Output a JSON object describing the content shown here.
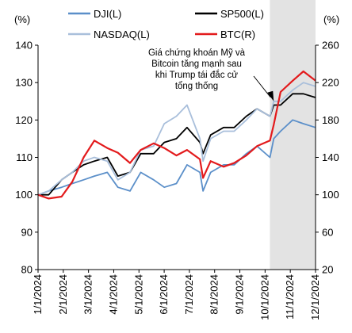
{
  "chart_data": {
    "type": "line",
    "title": "",
    "y_left": {
      "label": "(%)",
      "ylim": [
        80,
        140
      ],
      "ticks": [
        80,
        90,
        100,
        110,
        120,
        130,
        140
      ]
    },
    "y_right": {
      "label": "(%)",
      "ylim": [
        20,
        260
      ],
      "ticks": [
        20,
        60,
        100,
        140,
        180,
        220,
        260
      ]
    },
    "x_axis": {
      "range": [
        "2024-01-01",
        "2024-12-31"
      ],
      "tick_labels": [
        "1/1/2024",
        "2/1/2024",
        "3/1/2024",
        "4/1/2024",
        "5/1/2024",
        "6/1/2024",
        "7/1/2024",
        "8/1/2024",
        "9/1/2024",
        "10/1/2024",
        "11/1/2024",
        "12/1/2024"
      ]
    },
    "grid": false,
    "legend_position": "top",
    "highlight": {
      "from": "2024-11-01",
      "to": "2024-12-31",
      "color": "#d9d9d9"
    },
    "annotation": {
      "lines": [
        "Giá chứng khoán Mỹ và",
        "Bitcoin tăng mạnh sau",
        "khi Trump tái đắc cử",
        "tổng thống"
      ],
      "arrow_to": {
        "date": "2024-11-06",
        "value": 125
      }
    },
    "series": [
      {
        "name": "DJI(L)",
        "axis": "left",
        "color": "#5b8fc9",
        "points": [
          [
            "2024-01-01",
            100
          ],
          [
            "2024-01-15",
            101
          ],
          [
            "2024-02-01",
            102
          ],
          [
            "2024-02-15",
            103
          ],
          [
            "2024-03-01",
            104
          ],
          [
            "2024-03-15",
            105
          ],
          [
            "2024-04-01",
            106
          ],
          [
            "2024-04-15",
            102
          ],
          [
            "2024-05-01",
            101
          ],
          [
            "2024-05-15",
            106
          ],
          [
            "2024-06-01",
            104
          ],
          [
            "2024-06-15",
            102
          ],
          [
            "2024-07-01",
            103
          ],
          [
            "2024-07-15",
            108
          ],
          [
            "2024-08-01",
            106
          ],
          [
            "2024-08-05",
            101
          ],
          [
            "2024-08-15",
            106
          ],
          [
            "2024-09-01",
            108
          ],
          [
            "2024-09-15",
            108
          ],
          [
            "2024-10-01",
            111
          ],
          [
            "2024-10-15",
            113
          ],
          [
            "2024-11-01",
            110
          ],
          [
            "2024-11-06",
            115
          ],
          [
            "2024-11-15",
            117
          ],
          [
            "2024-12-01",
            120
          ],
          [
            "2024-12-15",
            119
          ],
          [
            "2024-12-31",
            118
          ]
        ]
      },
      {
        "name": "SP500(L)",
        "axis": "left",
        "color": "#000000",
        "points": [
          [
            "2024-01-01",
            100
          ],
          [
            "2024-01-15",
            100
          ],
          [
            "2024-02-01",
            104
          ],
          [
            "2024-02-15",
            106
          ],
          [
            "2024-03-01",
            108
          ],
          [
            "2024-03-15",
            109
          ],
          [
            "2024-04-01",
            110
          ],
          [
            "2024-04-15",
            105
          ],
          [
            "2024-05-01",
            106
          ],
          [
            "2024-05-15",
            111
          ],
          [
            "2024-06-01",
            111
          ],
          [
            "2024-06-15",
            114
          ],
          [
            "2024-07-01",
            115
          ],
          [
            "2024-07-15",
            118
          ],
          [
            "2024-08-01",
            114
          ],
          [
            "2024-08-05",
            111
          ],
          [
            "2024-08-15",
            116
          ],
          [
            "2024-09-01",
            118
          ],
          [
            "2024-09-15",
            118
          ],
          [
            "2024-10-01",
            121
          ],
          [
            "2024-10-15",
            123
          ],
          [
            "2024-11-01",
            121
          ],
          [
            "2024-11-06",
            124
          ],
          [
            "2024-11-15",
            124
          ],
          [
            "2024-12-01",
            127
          ],
          [
            "2024-12-15",
            127
          ],
          [
            "2024-12-31",
            126
          ]
        ]
      },
      {
        "name": "NASDAQ(L)",
        "axis": "left",
        "color": "#a9bfdb",
        "points": [
          [
            "2024-01-01",
            100
          ],
          [
            "2024-01-15",
            101
          ],
          [
            "2024-02-01",
            104
          ],
          [
            "2024-02-15",
            106
          ],
          [
            "2024-03-01",
            109
          ],
          [
            "2024-03-15",
            110
          ],
          [
            "2024-04-01",
            109
          ],
          [
            "2024-04-15",
            104
          ],
          [
            "2024-05-01",
            106
          ],
          [
            "2024-05-15",
            112
          ],
          [
            "2024-06-01",
            113
          ],
          [
            "2024-06-15",
            119
          ],
          [
            "2024-07-01",
            121
          ],
          [
            "2024-07-15",
            124
          ],
          [
            "2024-08-01",
            115
          ],
          [
            "2024-08-05",
            109
          ],
          [
            "2024-08-15",
            115
          ],
          [
            "2024-09-01",
            117
          ],
          [
            "2024-09-15",
            117
          ],
          [
            "2024-10-01",
            120
          ],
          [
            "2024-10-15",
            123
          ],
          [
            "2024-11-01",
            121
          ],
          [
            "2024-11-06",
            125
          ],
          [
            "2024-11-15",
            125
          ],
          [
            "2024-12-01",
            128
          ],
          [
            "2024-12-15",
            130
          ],
          [
            "2024-12-31",
            129
          ]
        ]
      },
      {
        "name": "BTC(R)",
        "axis": "right",
        "color": "#e31a1c",
        "points": [
          [
            "2024-01-01",
            100
          ],
          [
            "2024-01-15",
            96
          ],
          [
            "2024-02-01",
            98
          ],
          [
            "2024-02-15",
            114
          ],
          [
            "2024-03-01",
            140
          ],
          [
            "2024-03-15",
            158
          ],
          [
            "2024-04-01",
            150
          ],
          [
            "2024-04-15",
            145
          ],
          [
            "2024-05-01",
            134
          ],
          [
            "2024-05-15",
            148
          ],
          [
            "2024-06-01",
            155
          ],
          [
            "2024-06-15",
            150
          ],
          [
            "2024-07-01",
            142
          ],
          [
            "2024-07-15",
            148
          ],
          [
            "2024-08-01",
            138
          ],
          [
            "2024-08-05",
            118
          ],
          [
            "2024-08-15",
            136
          ],
          [
            "2024-09-01",
            130
          ],
          [
            "2024-09-15",
            134
          ],
          [
            "2024-10-01",
            142
          ],
          [
            "2024-10-15",
            152
          ],
          [
            "2024-11-01",
            158
          ],
          [
            "2024-11-06",
            175
          ],
          [
            "2024-11-15",
            210
          ],
          [
            "2024-12-01",
            222
          ],
          [
            "2024-12-15",
            232
          ],
          [
            "2024-12-31",
            222
          ]
        ]
      }
    ]
  }
}
